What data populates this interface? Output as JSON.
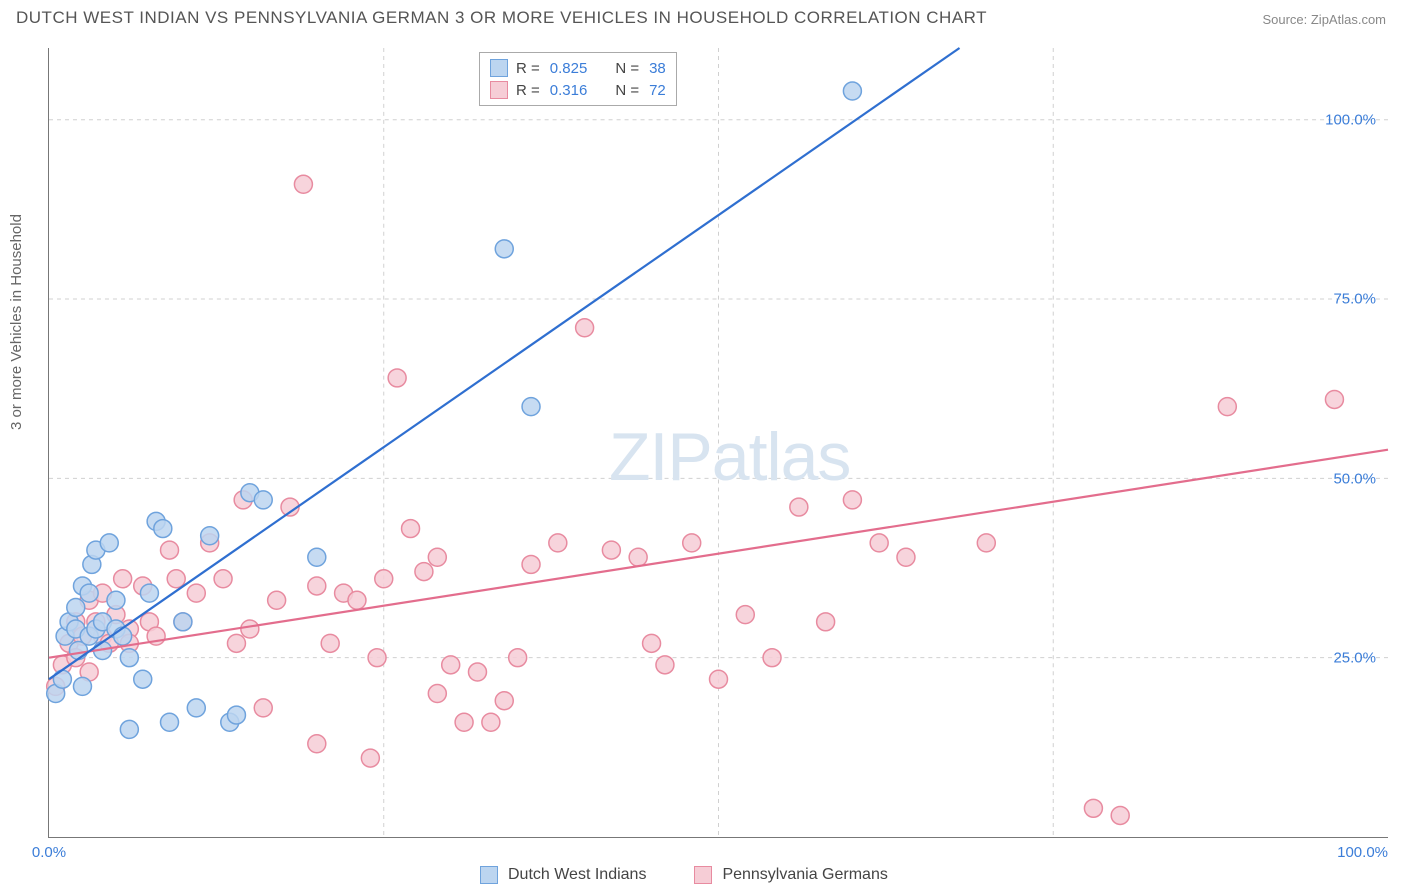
{
  "title": "DUTCH WEST INDIAN VS PENNSYLVANIA GERMAN 3 OR MORE VEHICLES IN HOUSEHOLD CORRELATION CHART",
  "source": "Source: ZipAtlas.com",
  "ylabel": "3 or more Vehicles in Household",
  "watermark": {
    "bold": "ZIP",
    "light": "atlas"
  },
  "chart": {
    "type": "scatter-with-regression",
    "background_color": "#ffffff",
    "grid_color": "#d0d0d0",
    "axis_color": "#777777",
    "xlim": [
      0,
      100
    ],
    "ylim": [
      0,
      110
    ],
    "xticks": [
      0,
      100
    ],
    "xtick_labels": [
      "0.0%",
      "100.0%"
    ],
    "yticks": [
      25,
      50,
      75,
      100
    ],
    "ytick_labels": [
      "25.0%",
      "50.0%",
      "75.0%",
      "100.0%"
    ],
    "vgrid_at": [
      25,
      50,
      75
    ],
    "marker_radius": 9,
    "marker_stroke_width": 1.5,
    "line_width": 2.2,
    "series": [
      {
        "key": "dwi",
        "name": "Dutch West Indians",
        "fill": "#bcd5f0",
        "stroke": "#6fa3dd",
        "line_color": "#2f6fd0",
        "R": "0.825",
        "N": "38",
        "reg_line": {
          "x1": 0,
          "y1": 22,
          "x2": 68,
          "y2": 110
        },
        "points": [
          [
            0.5,
            20
          ],
          [
            1,
            22
          ],
          [
            1.2,
            28
          ],
          [
            1.5,
            30
          ],
          [
            2,
            29
          ],
          [
            2,
            32
          ],
          [
            2.2,
            26
          ],
          [
            2.5,
            21
          ],
          [
            2.5,
            35
          ],
          [
            3,
            28
          ],
          [
            3,
            34
          ],
          [
            3.2,
            38
          ],
          [
            3.5,
            29
          ],
          [
            3.5,
            40
          ],
          [
            4,
            30
          ],
          [
            4,
            26
          ],
          [
            4.5,
            41
          ],
          [
            5,
            33
          ],
          [
            5,
            29
          ],
          [
            5.5,
            28
          ],
          [
            6,
            25
          ],
          [
            6,
            15
          ],
          [
            7,
            22
          ],
          [
            7.5,
            34
          ],
          [
            8,
            44
          ],
          [
            8.5,
            43
          ],
          [
            9,
            16
          ],
          [
            10,
            30
          ],
          [
            11,
            18
          ],
          [
            12,
            42
          ],
          [
            13.5,
            16
          ],
          [
            14,
            17
          ],
          [
            15,
            48
          ],
          [
            16,
            47
          ],
          [
            20,
            39
          ],
          [
            34,
            82
          ],
          [
            36,
            60
          ],
          [
            60,
            104
          ]
        ]
      },
      {
        "key": "pag",
        "name": "Pennsylvania Germans",
        "fill": "#f6cdd6",
        "stroke": "#e88ba0",
        "line_color": "#e36d8d",
        "R": "0.316",
        "N": "72",
        "reg_line": {
          "x1": 0,
          "y1": 25,
          "x2": 100,
          "y2": 54
        },
        "points": [
          [
            0.5,
            21
          ],
          [
            1,
            24
          ],
          [
            1.5,
            27
          ],
          [
            2,
            30
          ],
          [
            2,
            25
          ],
          [
            2.5,
            28
          ],
          [
            3,
            33
          ],
          [
            3,
            23
          ],
          [
            3.5,
            30
          ],
          [
            4,
            34
          ],
          [
            4,
            28
          ],
          [
            4.5,
            27
          ],
          [
            5,
            31
          ],
          [
            5.5,
            36
          ],
          [
            6,
            29
          ],
          [
            6,
            27
          ],
          [
            7,
            35
          ],
          [
            7.5,
            30
          ],
          [
            8,
            28
          ],
          [
            9,
            40
          ],
          [
            9.5,
            36
          ],
          [
            10,
            30
          ],
          [
            11,
            34
          ],
          [
            12,
            41
          ],
          [
            13,
            36
          ],
          [
            14,
            27
          ],
          [
            14.5,
            47
          ],
          [
            15,
            29
          ],
          [
            16,
            18
          ],
          [
            17,
            33
          ],
          [
            18,
            46
          ],
          [
            19,
            91
          ],
          [
            20,
            13
          ],
          [
            20,
            35
          ],
          [
            21,
            27
          ],
          [
            22,
            34
          ],
          [
            23,
            33
          ],
          [
            24,
            11
          ],
          [
            24.5,
            25
          ],
          [
            25,
            36
          ],
          [
            26,
            64
          ],
          [
            27,
            43
          ],
          [
            28,
            37
          ],
          [
            29,
            20
          ],
          [
            29,
            39
          ],
          [
            30,
            24
          ],
          [
            31,
            16
          ],
          [
            32,
            23
          ],
          [
            33,
            16
          ],
          [
            34,
            19
          ],
          [
            35,
            25
          ],
          [
            36,
            38
          ],
          [
            38,
            41
          ],
          [
            40,
            71
          ],
          [
            42,
            40
          ],
          [
            44,
            39
          ],
          [
            46,
            24
          ],
          [
            48,
            41
          ],
          [
            52,
            31
          ],
          [
            54,
            25
          ],
          [
            56,
            46
          ],
          [
            58,
            30
          ],
          [
            60,
            47
          ],
          [
            62,
            41
          ],
          [
            64,
            39
          ],
          [
            70,
            41
          ],
          [
            78,
            4
          ],
          [
            80,
            3
          ],
          [
            88,
            60
          ],
          [
            96,
            61
          ],
          [
            50,
            22
          ],
          [
            45,
            27
          ]
        ]
      }
    ]
  },
  "legend_top": {
    "border_color": "#aaaaaa",
    "r_label": "R =",
    "n_label": "N ="
  }
}
